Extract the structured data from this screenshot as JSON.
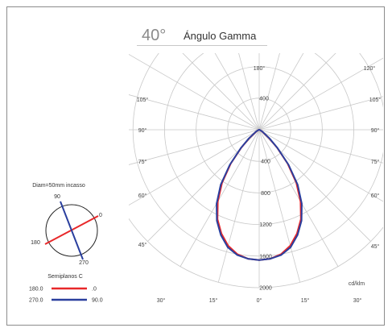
{
  "header": {
    "angle": "40°",
    "title": "Ángulo Gamma"
  },
  "chart_data": {
    "type": "polar",
    "units_label": "cd/klm",
    "radial_ticks": [
      "400",
      "800",
      "1200",
      "1600",
      "2000"
    ],
    "radial_ticks_upper": [
      "400"
    ],
    "radial_max": 2000,
    "angle_labels": {
      "left": [
        "105°",
        "90°",
        "75°",
        "60°",
        "45°",
        "30°"
      ],
      "right": [
        "120°",
        "105°",
        "90°",
        "75°",
        "60°",
        "45°",
        "30°"
      ],
      "top": "180°",
      "bottom": [
        "15°",
        "0°",
        "15°"
      ]
    },
    "series": [
      {
        "color": "#e8282a",
        "plane": "C0-C180",
        "angles": [
          0,
          5,
          10,
          15,
          20,
          25,
          30,
          35,
          40,
          45,
          50,
          60,
          70,
          80,
          90
        ],
        "values": [
          1650,
          1640,
          1600,
          1520,
          1400,
          1250,
          1050,
          820,
          560,
          320,
          160,
          40,
          10,
          0,
          0
        ]
      },
      {
        "color": "#2a3f9e",
        "plane": "C90-C270",
        "angles": [
          0,
          5,
          10,
          15,
          20,
          25,
          30,
          35,
          40,
          45,
          50,
          60,
          70,
          80,
          90
        ],
        "values": [
          1650,
          1640,
          1610,
          1540,
          1420,
          1270,
          1080,
          850,
          580,
          330,
          170,
          45,
          10,
          0,
          0
        ]
      }
    ]
  },
  "fixture": {
    "label": "Diam=50mm incasso",
    "c_labels": [
      "90",
      "0",
      "180",
      "270"
    ]
  },
  "legend": {
    "title": "Semiplanos C",
    "rows": [
      {
        "left": "180.0",
        "right": ".0",
        "color": "#e8282a"
      },
      {
        "left": "270.0",
        "right": "90.0",
        "color": "#2a3f9e"
      }
    ]
  }
}
